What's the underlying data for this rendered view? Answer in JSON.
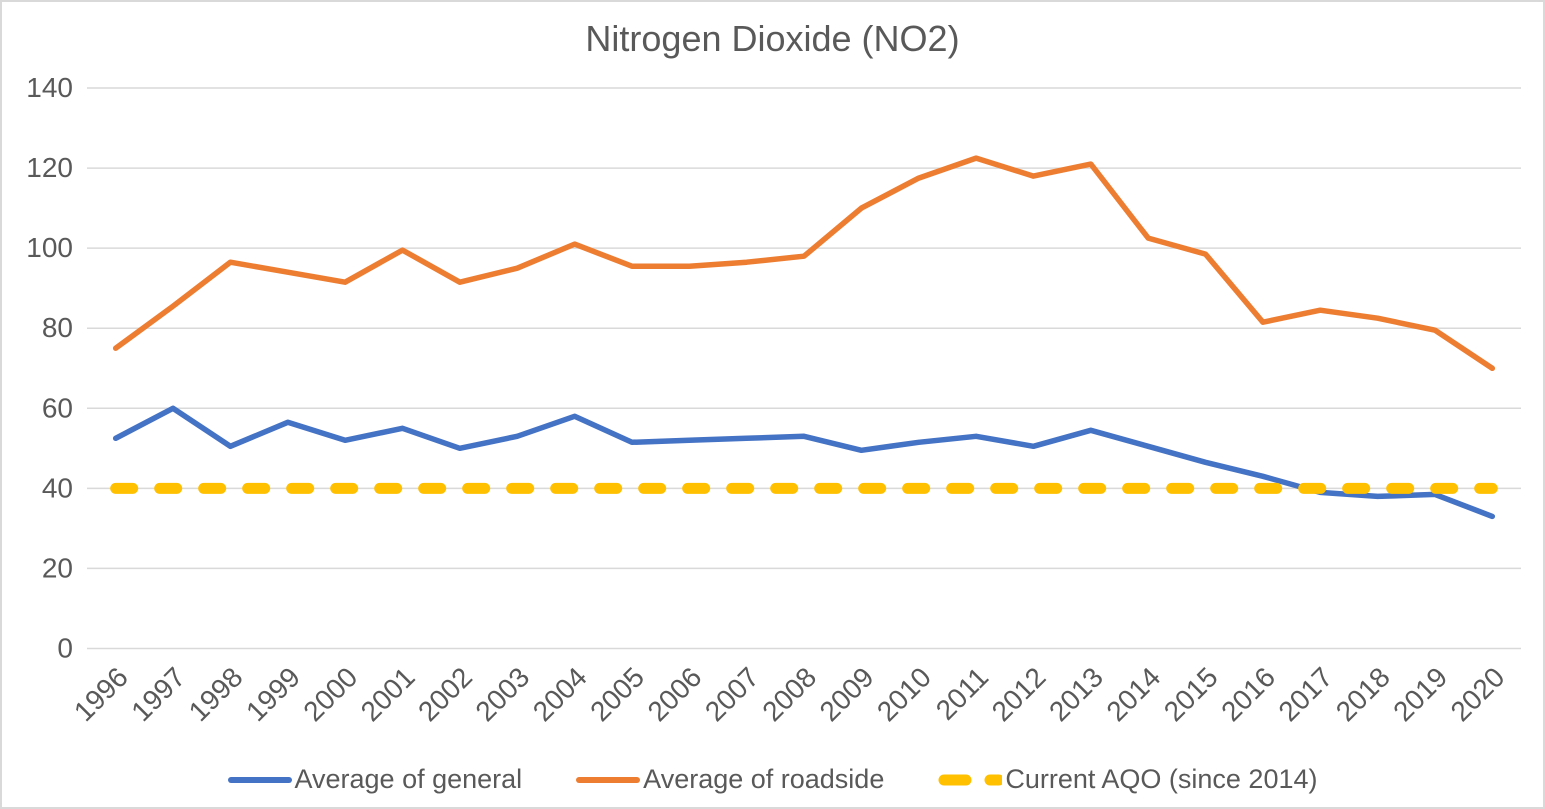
{
  "chart_data": {
    "type": "line",
    "title": "Nitrogen Dioxide (NO2)",
    "categories": [
      "1996",
      "1997",
      "1998",
      "1999",
      "2000",
      "2001",
      "2002",
      "2003",
      "2004",
      "2005",
      "2006",
      "2007",
      "2008",
      "2009",
      "2010",
      "2011",
      "2012",
      "2013",
      "2014",
      "2015",
      "2016",
      "2017",
      "2018",
      "2019",
      "2020"
    ],
    "series": [
      {
        "name": "Average of general",
        "color": "#4472C4",
        "style": "solid",
        "values": [
          52.5,
          60,
          50.5,
          56.5,
          52,
          55,
          50,
          53,
          58,
          51.5,
          52,
          52.5,
          53,
          49.5,
          51.5,
          53,
          50.5,
          54.5,
          50.5,
          46.5,
          43,
          39,
          38,
          38.5,
          33
        ]
      },
      {
        "name": "Average of roadside",
        "color": "#ED7D31",
        "style": "solid",
        "values": [
          75,
          85.5,
          96.5,
          94,
          91.5,
          99.5,
          91.5,
          95,
          101,
          95.5,
          95.5,
          96.5,
          98,
          110,
          117.5,
          122.5,
          118,
          121,
          102.5,
          98.5,
          81.5,
          84.5,
          82.5,
          79.5,
          70
        ]
      },
      {
        "name": "Current AQO (since 2014)",
        "color": "#FFC000",
        "style": "dashed",
        "values": [
          40,
          40,
          40,
          40,
          40,
          40,
          40,
          40,
          40,
          40,
          40,
          40,
          40,
          40,
          40,
          40,
          40,
          40,
          40,
          40,
          40,
          40,
          40,
          40,
          40
        ]
      }
    ],
    "ylim": [
      0,
      140
    ],
    "y_ticks": [
      0,
      20,
      40,
      60,
      80,
      100,
      120,
      140
    ],
    "x_tick_rotation": -45,
    "grid": "horizontal",
    "legend_position": "bottom",
    "colors": {
      "grid": "#D9D9D9",
      "axis_text": "#595959",
      "title_text": "#595959",
      "background": "#FFFFFF",
      "border": "#D9D9D9"
    }
  }
}
